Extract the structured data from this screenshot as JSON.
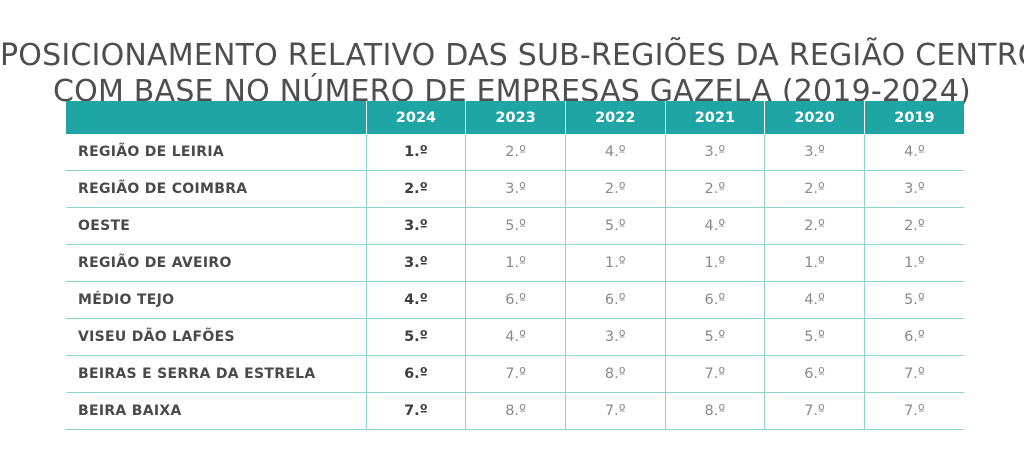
{
  "title": {
    "line1": "POSICIONAMENTO RELATIVO DAS SUB-REGIÕES DA REGIÃO CENTRO",
    "line2": "COM BASE NO NÚMERO DE EMPRESAS GAZELA (2019-2024)"
  },
  "table": {
    "region_header": "",
    "years": [
      "2024",
      "2023",
      "2022",
      "2021",
      "2020",
      "2019"
    ],
    "rows": [
      {
        "region": "REGIÃO DE LEIRIA",
        "ranks": [
          "1.º",
          "2.º",
          "4.º",
          "3.º",
          "3.º",
          "4.º"
        ]
      },
      {
        "region": "REGIÃO DE COIMBRA",
        "ranks": [
          "2.º",
          "3.º",
          "2.º",
          "2.º",
          "2.º",
          "3.º"
        ]
      },
      {
        "region": "OESTE",
        "ranks": [
          "3.º",
          "5.º",
          "5.º",
          "4.º",
          "2.º",
          "2.º"
        ]
      },
      {
        "region": "REGIÃO DE AVEIRO",
        "ranks": [
          "3.º",
          "1.º",
          "1.º",
          "1.º",
          "1.º",
          "1.º"
        ]
      },
      {
        "region": "MÉDIO TEJO",
        "ranks": [
          "4.º",
          "6.º",
          "6.º",
          "6.º",
          "4.º",
          "5.º"
        ]
      },
      {
        "region": "VISEU DÃO LAFÕES",
        "ranks": [
          "5.º",
          "4.º",
          "3.º",
          "5.º",
          "5.º",
          "6.º"
        ]
      },
      {
        "region": "BEIRAS E SERRA DA ESTRELA",
        "ranks": [
          "6.º",
          "7.º",
          "8.º",
          "7.º",
          "6.º",
          "7.º"
        ]
      },
      {
        "region": "BEIRA BAIXA",
        "ranks": [
          "7.º",
          "8.º",
          "7.º",
          "8.º",
          "7.º",
          "7.º"
        ]
      }
    ]
  },
  "colors": {
    "header_bg": "#1fa5a3",
    "grid_line": "#8fd3d1",
    "title_text": "#4e4e4e"
  }
}
